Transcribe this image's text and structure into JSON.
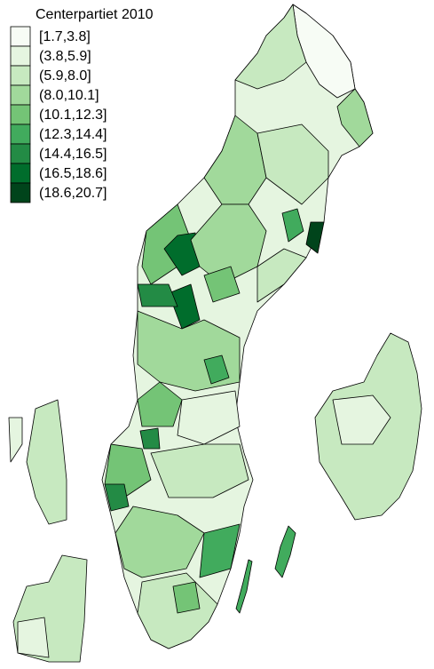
{
  "legend": {
    "title": "Centerpartiet 2010",
    "items": [
      {
        "label": "[1.7,3.8]",
        "color": "#f7fcf5"
      },
      {
        "label": "(3.8,5.9]",
        "color": "#e5f5e0"
      },
      {
        "label": "(5.9,8.0]",
        "color": "#c7e9c0"
      },
      {
        "label": "(8.0,10.1]",
        "color": "#a1d99b"
      },
      {
        "label": "(10.1,12.3]",
        "color": "#74c476"
      },
      {
        "label": "(12.3,14.4]",
        "color": "#41ab5d"
      },
      {
        "label": "(14.4,16.5]",
        "color": "#238b45"
      },
      {
        "label": "(16.5,18.6]",
        "color": "#006d2c"
      },
      {
        "label": "(18.6,20.7]",
        "color": "#00441b"
      }
    ]
  }
}
